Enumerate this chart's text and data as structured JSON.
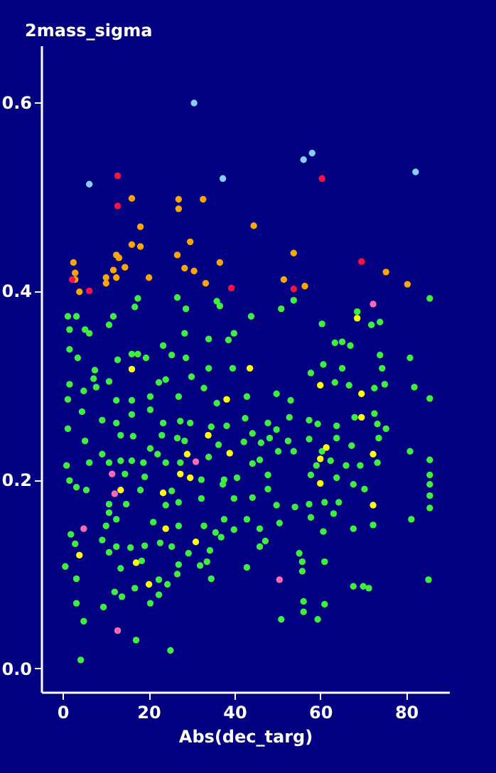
{
  "chart_data": {
    "type": "scatter",
    "xlabel": "Abs(dec_targ)",
    "ylabel": "2mass_sigma",
    "xlim": [
      -5,
      90
    ],
    "ylim": [
      -0.025,
      0.66
    ],
    "xticks": [
      0,
      20,
      40,
      60,
      80
    ],
    "yticks": [
      {
        "value": 0,
        "label": "0.0"
      },
      0.2,
      0.4,
      0.6
    ],
    "grid": false,
    "legend": false,
    "marker": "circle",
    "series": [
      {
        "color": "#3cf03c",
        "x": [
          1.2,
          3.2,
          1.6,
          5.2,
          6.2,
          11.8,
          10.8,
          16.8,
          17.5,
          26.7,
          28.7,
          28.4,
          34.0,
          35.9,
          36.6,
          38.6,
          39.9,
          43.9,
          50.9,
          53.8,
          60.4,
          68.6,
          71.9,
          73.9,
          85.5,
          23.4,
          1.6,
          3.5,
          12.8,
          16.1,
          17.5,
          19.4,
          25.4,
          28.7,
          34.0,
          39.6,
          63.4,
          65.1,
          67.0,
          73.9,
          80.9,
          74.4,
          57.8,
          60.7,
          65.1,
          7.5,
          7.2,
          7.8,
          1.6,
          4.9,
          1.2,
          10.8,
          12.5,
          16.1,
          20.4,
          22.4,
          24.0,
          27.0,
          30.0,
          32.9,
          35.9,
          42.9,
          49.8,
          53.1,
          63.4,
          66.7,
          72.6,
          75.0,
          81.9,
          85.5,
          4.5,
          9.2,
          12.5,
          16.1,
          20.4,
          23.4,
          27.4,
          29.7,
          34.6,
          38.2,
          42.5,
          44.2,
          47.8,
          49.8,
          52.8,
          57.4,
          59.4,
          63.8,
          68.0,
          72.6,
          73.3,
          75.3,
          1.2,
          5.2,
          13.5,
          16.4,
          20.4,
          23.1,
          26.7,
          28.4,
          36.3,
          42.2,
          46.2,
          48.2,
          52.5,
          57.4,
          60.4,
          63.8,
          67.3,
          73.6,
          80.9,
          0.9,
          6.2,
          9.2,
          10.8,
          13.5,
          16.1,
          18.8,
          22.1,
          24.0,
          27.4,
          32.3,
          34.0,
          37.6,
          40.6,
          44.2,
          45.9,
          47.8,
          50.2,
          53.8,
          59.1,
          62.4,
          66.0,
          69.3,
          73.3,
          85.5,
          1.6,
          3.2,
          5.5,
          14.5,
          19.1,
          25.4,
          32.3,
          37.3,
          47.8,
          57.8,
          63.8,
          67.7,
          70.3,
          85.5,
          85.5,
          85.5,
          10.8,
          14.8,
          18.1,
          24.0,
          27.0,
          39.9,
          44.2,
          49.8,
          54.1,
          57.4,
          61.0,
          64.3,
          85.5,
          10.8,
          12.5,
          21.1,
          27.0,
          32.9,
          37.6,
          42.9,
          50.5,
          57.8,
          63.1,
          67.7,
          72.3,
          81.2,
          10.1,
          39.9,
          45.9,
          60.7,
          1.9,
          2.9,
          0.6,
          3.2,
          3.2,
          4.9,
          4.2,
          9.2,
          10.8,
          12.5,
          13.5,
          9.5,
          12.1,
          13.8,
          17.1,
          15.8,
          18.4,
          19.1,
          16.8,
          20.4,
          22.4,
          22.4,
          24.4,
          22.7,
          25.4,
          25.1,
          27.0,
          26.7,
          29.3,
          32.0,
          33.6,
          34.6,
          34.3,
          35.6,
          36.9,
          42.9,
          45.9,
          47.2,
          50.9,
          55.1,
          55.8,
          55.8,
          56.1,
          56.1,
          59.4,
          61.0,
          61.0,
          67.7,
          70.0,
          71.3,
          85.2
        ],
        "values": [
          0.373,
          0.373,
          0.359,
          0.359,
          0.355,
          0.373,
          0.364,
          0.383,
          0.392,
          0.393,
          0.381,
          0.355,
          0.349,
          0.389,
          0.384,
          0.348,
          0.355,
          0.373,
          0.381,
          0.39,
          0.365,
          0.378,
          0.364,
          0.367,
          0.392,
          0.342,
          0.338,
          0.329,
          0.327,
          0.333,
          0.333,
          0.329,
          0.332,
          0.329,
          0.318,
          0.318,
          0.345,
          0.346,
          0.342,
          0.332,
          0.329,
          0.318,
          0.313,
          0.322,
          0.318,
          0.316,
          0.307,
          0.298,
          0.301,
          0.294,
          0.285,
          0.304,
          0.284,
          0.284,
          0.288,
          0.303,
          0.306,
          0.288,
          0.309,
          0.297,
          0.281,
          0.288,
          0.291,
          0.284,
          0.303,
          0.3,
          0.297,
          0.301,
          0.298,
          0.286,
          0.272,
          0.263,
          0.26,
          0.269,
          0.274,
          0.26,
          0.262,
          0.26,
          0.256,
          0.257,
          0.265,
          0.249,
          0.26,
          0.253,
          0.266,
          0.263,
          0.259,
          0.257,
          0.266,
          0.27,
          0.259,
          0.254,
          0.254,
          0.241,
          0.247,
          0.246,
          0.233,
          0.247,
          0.244,
          0.241,
          0.237,
          0.24,
          0.239,
          0.244,
          0.241,
          0.243,
          0.23,
          0.244,
          0.236,
          0.244,
          0.23,
          0.215,
          0.218,
          0.227,
          0.218,
          0.22,
          0.22,
          0.218,
          0.227,
          0.218,
          0.218,
          0.2,
          0.224,
          0.2,
          0.202,
          0.217,
          0.221,
          0.205,
          0.23,
          0.23,
          0.215,
          0.22,
          0.215,
          0.215,
          0.218,
          0.221,
          0.199,
          0.192,
          0.189,
          0.206,
          0.203,
          0.188,
          0.18,
          0.195,
          0.19,
          0.205,
          0.202,
          0.195,
          0.19,
          0.205,
          0.195,
          0.183,
          0.174,
          0.174,
          0.189,
          0.173,
          0.176,
          0.18,
          0.181,
          0.173,
          0.171,
          0.174,
          0.176,
          0.176,
          0.17,
          0.165,
          0.158,
          0.155,
          0.151,
          0.151,
          0.158,
          0.158,
          0.154,
          0.16,
          0.164,
          0.148,
          0.152,
          0.158,
          0.151,
          0.147,
          0.148,
          0.145,
          0.142,
          0.132,
          0.108,
          0.095,
          0.069,
          0.05,
          0.009,
          0.136,
          0.123,
          0.129,
          0.106,
          0.065,
          0.081,
          0.076,
          0.03,
          0.128,
          0.114,
          0.13,
          0.085,
          0.069,
          0.094,
          0.078,
          0.089,
          0.133,
          0.129,
          0.019,
          0.11,
          0.1,
          0.122,
          0.109,
          0.113,
          0.095,
          0.125,
          0.144,
          0.139,
          0.107,
          0.129,
          0.135,
          0.052,
          0.122,
          0.113,
          0.103,
          0.071,
          0.06,
          0.052,
          0.068,
          0.113,
          0.087,
          0.087,
          0.085,
          0.094
        ]
      },
      {
        "color": "#ffff00",
        "x": [
          68.6,
          16.1,
          43.6,
          60.0,
          69.6,
          38.2,
          69.6,
          33.9,
          61.4,
          38.9,
          29.0,
          72.3,
          60.0,
          27.4,
          29.7,
          60.0,
          13.5,
          23.4,
          72.3,
          24.0,
          31.0,
          3.9,
          17.1,
          20.1
        ],
        "values": [
          0.371,
          0.317,
          0.318,
          0.3,
          0.291,
          0.285,
          0.266,
          0.247,
          0.234,
          0.228,
          0.227,
          0.227,
          0.222,
          0.206,
          0.202,
          0.196,
          0.189,
          0.186,
          0.173,
          0.148,
          0.134,
          0.12,
          0.112,
          0.089
        ]
      },
      {
        "color": "#ff69b4",
        "x": [
          72.3,
          31.0,
          11.5,
          12.1,
          4.9,
          50.5,
          12.8
        ],
        "values": [
          0.386,
          0.219,
          0.206,
          0.185,
          0.148,
          0.094,
          0.04
        ]
      },
      {
        "color": "#ffa500",
        "x": [
          16.1,
          27.0,
          27.0,
          32.7,
          18.1,
          44.5,
          16.1,
          18.1,
          29.7,
          12.5,
          13.1,
          26.7,
          2.5,
          14.5,
          11.8,
          28.4,
          30.6,
          36.6,
          53.8,
          2.9,
          10.1,
          12.5,
          20.1,
          10.1,
          2.9,
          3.9,
          33.3,
          51.5,
          56.4,
          75.3,
          80.3
        ],
        "values": [
          0.498,
          0.497,
          0.487,
          0.497,
          0.468,
          0.469,
          0.449,
          0.447,
          0.452,
          0.438,
          0.435,
          0.438,
          0.43,
          0.425,
          0.422,
          0.424,
          0.421,
          0.43,
          0.44,
          0.419,
          0.414,
          0.414,
          0.414,
          0.408,
          0.412,
          0.399,
          0.408,
          0.412,
          0.405,
          0.42,
          0.407
        ]
      },
      {
        "color": "#ff1040",
        "x": [
          12.8,
          12.8,
          60.4,
          2.2,
          6.2,
          39.3,
          53.8,
          69.6
        ],
        "values": [
          0.522,
          0.49,
          0.519,
          0.412,
          0.4,
          0.403,
          0.402,
          0.431
        ]
      },
      {
        "color": "#87cefa",
        "x": [
          30.6,
          6.2,
          37.3,
          56.1,
          58.1,
          82.2
        ],
        "values": [
          0.599,
          0.513,
          0.519,
          0.539,
          0.546,
          0.526
        ]
      }
    ]
  }
}
